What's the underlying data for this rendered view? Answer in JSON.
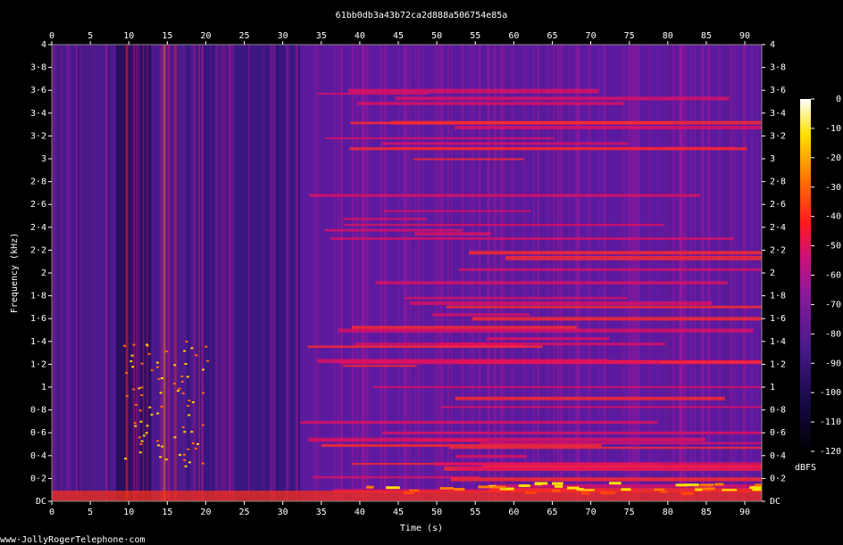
{
  "chart_data": {
    "type": "spectrogram",
    "title": "61bb0db3a43b72ca2d888a506754e85a",
    "x_label": "Time (s)",
    "y_label": "Frequency (kHz)",
    "xlim": [
      0,
      92.2
    ],
    "xticks": [
      0,
      5,
      10,
      15,
      20,
      25,
      30,
      35,
      40,
      45,
      50,
      55,
      60,
      65,
      70,
      75,
      80,
      85,
      90
    ],
    "ylim": [
      0,
      4
    ],
    "yticks": [
      {
        "value": 0,
        "label": "DC"
      },
      {
        "value": 0.2,
        "label": "0·2"
      },
      {
        "value": 0.4,
        "label": "0·4"
      },
      {
        "value": 0.6,
        "label": "0·6"
      },
      {
        "value": 0.8,
        "label": "0·8"
      },
      1,
      {
        "value": 1.2,
        "label": "1·2"
      },
      {
        "value": 1.4,
        "label": "1·4"
      },
      {
        "value": 1.6,
        "label": "1·6"
      },
      {
        "value": 1.8,
        "label": "1·8"
      },
      2,
      {
        "value": 2.2,
        "label": "2·2"
      },
      {
        "value": 2.4,
        "label": "2·4"
      },
      {
        "value": 2.6,
        "label": "2·6"
      },
      {
        "value": 2.8,
        "label": "2·8"
      },
      3,
      {
        "value": 3.2,
        "label": "3·2"
      },
      {
        "value": 3.4,
        "label": "3·4"
      },
      {
        "value": 3.6,
        "label": "3·6"
      },
      {
        "value": 3.8,
        "label": "3·8"
      },
      4
    ],
    "colorbar": {
      "label": "dBFS",
      "lim": [
        -120,
        0
      ],
      "ticks": [
        0,
        -10,
        -20,
        -30,
        -40,
        -50,
        -60,
        -70,
        -80,
        -90,
        -100,
        -110,
        -120
      ]
    },
    "footer": "www·JollyRogerTelephone·com"
  }
}
